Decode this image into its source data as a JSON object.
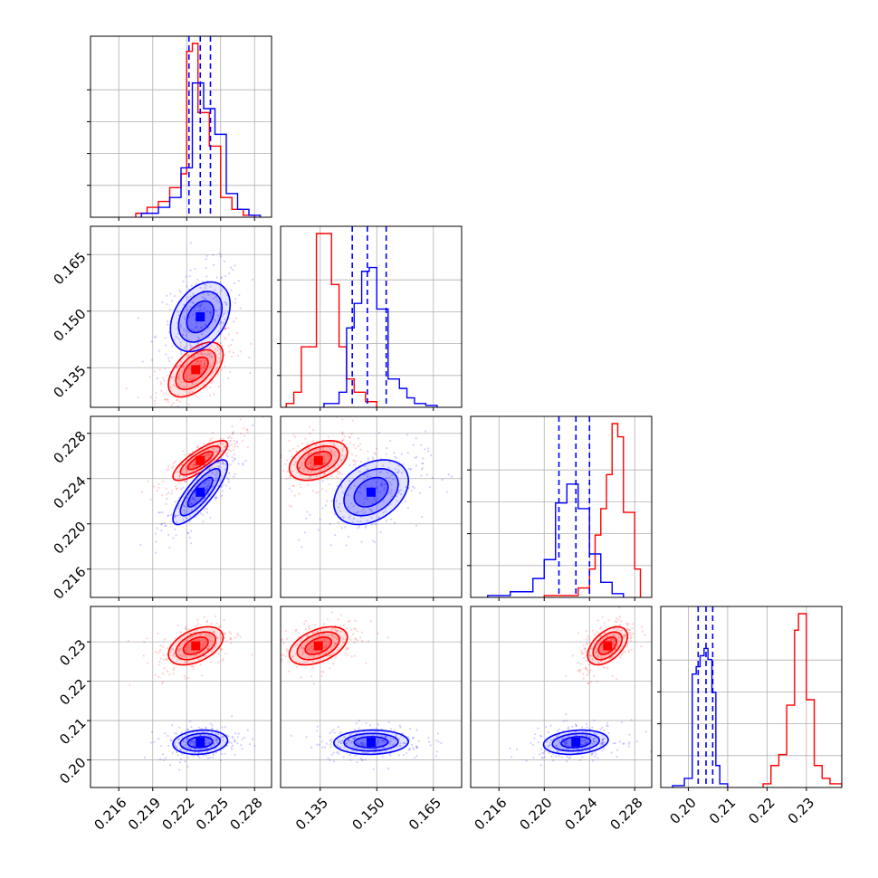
{
  "chart_data": {
    "type": "corner",
    "params": [
      {
        "range": [
          0.2135,
          0.2295
        ],
        "ticks": [
          0.216,
          0.219,
          0.222,
          0.225,
          0.228
        ],
        "tick_labels": [
          "0.216",
          "0.219",
          "0.222",
          "0.225",
          "0.228"
        ]
      },
      {
        "range": [
          0.1245,
          0.1725
        ],
        "ticks": [
          0.135,
          0.15,
          0.165
        ],
        "tick_labels": [
          "0.135",
          "0.150",
          "0.165"
        ]
      },
      {
        "range": [
          0.2135,
          0.2295
        ],
        "ticks": [
          0.216,
          0.22,
          0.224,
          0.228
        ],
        "tick_labels": [
          "0.216",
          "0.220",
          "0.224",
          "0.228"
        ]
      },
      {
        "range": [
          0.193,
          0.239
        ],
        "ticks": [
          0.2,
          0.21,
          0.22,
          0.23
        ],
        "tick_labels": [
          "0.20",
          "0.21",
          "0.22",
          "0.23"
        ]
      }
    ],
    "series": [
      {
        "color": "#ff0000",
        "quantiles": null,
        "hist": [
          {
            "edges": [
              0.2175,
              0.2185,
              0.2195,
              0.2205,
              0.2215,
              0.222,
              0.2225,
              0.223,
              0.224,
              0.225,
              0.226,
              0.227,
              0.228
            ],
            "counts": [
              0.02,
              0.05,
              0.08,
              0.15,
              0.22,
              0.84,
              0.88,
              0.53,
              0.36,
              0.1,
              0.04,
              0.01
            ]
          },
          {
            "edges": [
              0.126,
              0.128,
              0.13,
              0.134,
              0.138,
              0.14,
              0.142,
              0.144,
              0.147,
              0.15
            ],
            "counts": [
              0.02,
              0.08,
              0.32,
              0.92,
              0.65,
              0.32,
              0.15,
              0.08,
              0.03
            ]
          },
          {
            "edges": [
              0.22,
              0.223,
              0.224,
              0.2245,
              0.225,
              0.2255,
              0.226,
              0.2265,
              0.227,
              0.228,
              0.2285
            ],
            "counts": [
              0.01,
              0.05,
              0.15,
              0.33,
              0.47,
              0.65,
              0.92,
              0.85,
              0.45,
              0.15
            ]
          },
          {
            "edges": [
              0.219,
              0.221,
              0.223,
              0.225,
              0.227,
              0.228,
              0.23,
              0.232,
              0.234,
              0.236,
              0.239
            ],
            "counts": [
              0.02,
              0.12,
              0.18,
              0.45,
              0.86,
              0.95,
              0.48,
              0.12,
              0.05,
              0.02
            ]
          }
        ],
        "centers": [
          0.2228,
          0.1345,
          0.2256,
          0.229
        ],
        "covariances": [
          [
            {
              "cx": 0.2228,
              "cy": 0.1345,
              "sx": 0.0011,
              "sy": 0.0033,
              "rho": 0.55
            },
            {
              "cx": 0.2232,
              "cy": 0.2256,
              "sx": 0.0011,
              "sy": 0.0008,
              "rho": 0.8
            },
            {
              "cx": 0.2228,
              "cy": 0.229,
              "sx": 0.0011,
              "sy": 0.0022,
              "rho": 0.45
            }
          ],
          [
            {
              "cx": 0.1345,
              "cy": 0.2256,
              "sx": 0.0035,
              "sy": 0.0008,
              "rho": 0.4
            },
            {
              "cx": 0.1345,
              "cy": 0.229,
              "sx": 0.0035,
              "sy": 0.0022,
              "rho": 0.45
            }
          ],
          [
            {
              "cx": 0.2256,
              "cy": 0.229,
              "sx": 0.0008,
              "sy": 0.0022,
              "rho": 0.5
            }
          ]
        ]
      },
      {
        "color": "#0000ff",
        "quantiles": [
          [
            0.2222,
            0.2232,
            0.2241
          ],
          [
            0.1435,
            0.1475,
            0.1525
          ],
          [
            0.2213,
            0.2228,
            0.224
          ],
          [
            0.2025,
            0.2045,
            0.2062
          ]
        ],
        "hist": [
          {
            "edges": [
              0.218,
              0.2195,
              0.2205,
              0.2215,
              0.2225,
              0.2235,
              0.2245,
              0.2255,
              0.2265,
              0.2275,
              0.2285
            ],
            "counts": [
              0.02,
              0.05,
              0.1,
              0.25,
              0.68,
              0.55,
              0.42,
              0.12,
              0.04,
              0.01
            ]
          },
          {
            "edges": [
              0.136,
              0.14,
              0.142,
              0.144,
              0.146,
              0.148,
              0.15,
              0.153,
              0.156,
              0.158,
              0.16,
              0.163,
              0.166
            ],
            "counts": [
              0.02,
              0.08,
              0.42,
              0.55,
              0.72,
              0.74,
              0.52,
              0.15,
              0.1,
              0.05,
              0.02,
              0.01
            ]
          },
          {
            "edges": [
              0.215,
              0.217,
              0.219,
              0.22,
              0.221,
              0.222,
              0.223,
              0.224,
              0.225,
              0.226,
              0.227
            ],
            "counts": [
              0.01,
              0.03,
              0.1,
              0.2,
              0.5,
              0.6,
              0.47,
              0.23,
              0.08,
              0.02
            ]
          },
          {
            "edges": [
              0.196,
              0.199,
              0.201,
              0.202,
              0.203,
              0.204,
              0.205,
              0.206,
              0.207,
              0.208,
              0.21
            ],
            "counts": [
              0.01,
              0.05,
              0.62,
              0.66,
              0.72,
              0.76,
              0.7,
              0.52,
              0.12,
              0.02
            ]
          }
        ],
        "centers": [
          0.2232,
          0.1485,
          0.2228,
          0.2045
        ],
        "covariances": [
          [
            {
              "cx": 0.2232,
              "cy": 0.1485,
              "sx": 0.0012,
              "sy": 0.0042,
              "rho": 0.35
            },
            {
              "cx": 0.2232,
              "cy": 0.2228,
              "sx": 0.0011,
              "sy": 0.0013,
              "rho": 0.82
            },
            {
              "cx": 0.2232,
              "cy": 0.2045,
              "sx": 0.0011,
              "sy": 0.0014,
              "rho": 0.15
            }
          ],
          [
            {
              "cx": 0.1485,
              "cy": 0.2228,
              "sx": 0.0045,
              "sy": 0.0013,
              "rho": 0.35
            },
            {
              "cx": 0.1485,
              "cy": 0.2045,
              "sx": 0.0045,
              "sy": 0.0014,
              "rho": 0.05
            }
          ],
          [
            {
              "cx": 0.2228,
              "cy": 0.2045,
              "sx": 0.0013,
              "sy": 0.0014,
              "rho": 0.2
            }
          ]
        ]
      }
    ],
    "grid": true
  }
}
